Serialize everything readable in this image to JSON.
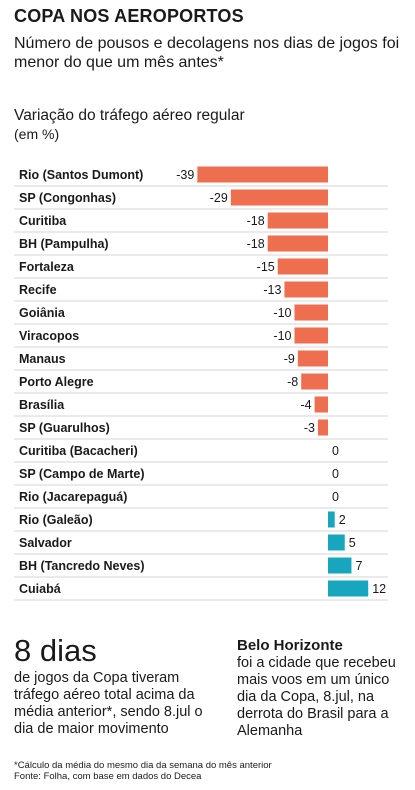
{
  "header": {
    "title": "COPA NOS AEROPORTOS",
    "subtitle": "Número de pousos e decolagens nos dias de jogos foi menor do que um mês antes*"
  },
  "chart_data": {
    "type": "bar",
    "orientation": "horizontal",
    "title": "Variação do tráfego aéreo regular",
    "unit": "(em %)",
    "categories": [
      "Rio (Santos Dumont)",
      "SP (Congonhas)",
      "Curitiba",
      "BH (Pampulha)",
      "Fortaleza",
      "Recife",
      "Goiânia",
      "Viracopos",
      "Manaus",
      "Porto Alegre",
      "Brasília",
      "SP (Guarulhos)",
      "Curitiba (Bacacheri)",
      "SP (Campo de Marte)",
      "Rio (Jacarepaguá)",
      "Rio (Galeão)",
      "Salvador",
      "BH (Tancredo Neves)",
      "Cuiabá"
    ],
    "values": [
      -39,
      -29,
      -18,
      -18,
      -15,
      -13,
      -10,
      -10,
      -9,
      -8,
      -4,
      -3,
      0,
      0,
      0,
      2,
      5,
      7,
      12
    ],
    "colors": {
      "negative": "#ee6f50",
      "positive": "#17a6bd"
    }
  },
  "highlights": {
    "stat_number": "8 dias",
    "stat_text": "de jogos da Copa tiveram tráfego aéreo total acima da média anterior*, sendo 8.jul o dia de maior movimento",
    "bh_title": "Belo Horizonte",
    "bh_text": "foi a cidade que recebeu mais voos em um único dia da Copa, 8.jul, na derrota do Brasil para a Alemanha"
  },
  "footnote": {
    "note": "*Cálculo da média do mesmo dia da semana do mês anterior",
    "source": "Fonte: Folha, com base em dados do Decea"
  }
}
